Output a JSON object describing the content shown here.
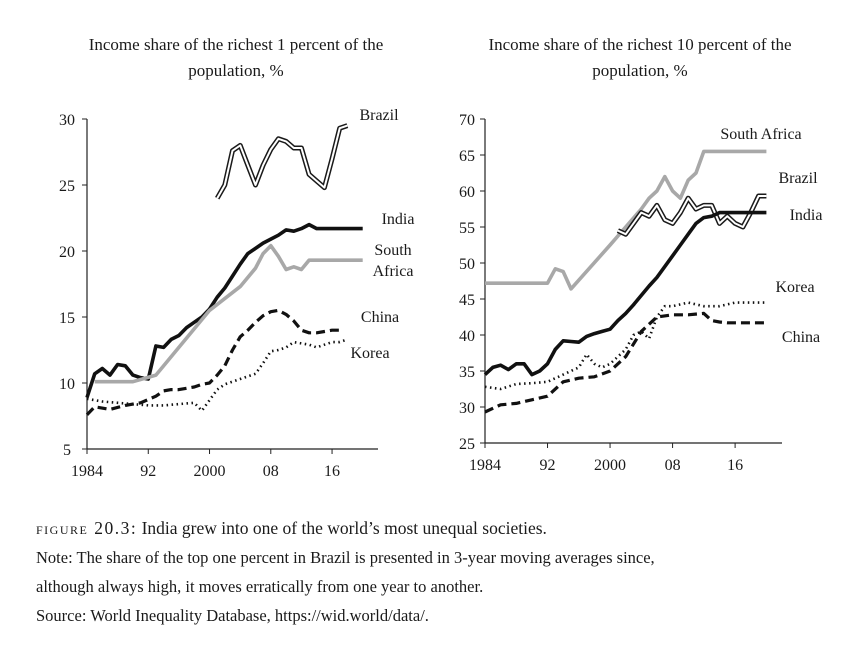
{
  "chart_data": [
    {
      "type": "line",
      "title_lines": [
        "Income share of the richest 1 percent of the",
        "population, %"
      ],
      "ylim": [
        5,
        30
      ],
      "yticks": [
        5,
        10,
        15,
        20,
        25,
        30
      ],
      "xlim": [
        1984,
        2022
      ],
      "xticks": [
        1984,
        1992,
        2000,
        2008,
        2016
      ],
      "xtick_labels": [
        "1984",
        "92",
        "2000",
        "08",
        "16"
      ],
      "series": [
        {
          "name": "Brazil",
          "label_lines": [
            "Brazil"
          ],
          "style": "double",
          "x": [
            2001,
            2002,
            2003,
            2004,
            2005,
            2006,
            2007,
            2008,
            2009,
            2010,
            2011,
            2012,
            2013,
            2014,
            2015,
            2016,
            2017,
            2018
          ],
          "y": [
            24,
            25,
            27.6,
            28,
            26.5,
            25,
            26.5,
            27.7,
            28.5,
            28.3,
            27.8,
            27.8,
            25.8,
            25.3,
            24.8,
            27,
            29.3,
            29.5
          ]
        },
        {
          "name": "India",
          "label_lines": [
            "India"
          ],
          "style": "solid-black",
          "x": [
            1984,
            1985,
            1986,
            1987,
            1988,
            1989,
            1990,
            1991,
            1992,
            1993,
            1994,
            1995,
            1996,
            1997,
            1998,
            1999,
            2000,
            2001,
            2002,
            2003,
            2004,
            2005,
            2006,
            2007,
            2008,
            2009,
            2010,
            2011,
            2012,
            2013,
            2014,
            2015,
            2016,
            2017,
            2018,
            2019,
            2020
          ],
          "y": [
            8.9,
            10.7,
            11.1,
            10.6,
            11.4,
            11.3,
            10.6,
            10.4,
            10.3,
            12.8,
            12.7,
            13.3,
            13.6,
            14.2,
            14.6,
            15,
            15.6,
            16.5,
            17.2,
            18.1,
            19,
            19.8,
            20.2,
            20.6,
            20.9,
            21.2,
            21.6,
            21.5,
            21.7,
            22,
            21.7,
            21.7,
            21.7,
            21.7,
            21.7,
            21.7,
            21.7
          ]
        },
        {
          "name": "South Africa",
          "label_lines": [
            "South",
            "Africa"
          ],
          "style": "solid-gray",
          "x": [
            1985,
            1990,
            1993,
            2000,
            2004,
            2006,
            2007,
            2008,
            2009,
            2010,
            2011,
            2012,
            2013,
            2018,
            2020
          ],
          "y": [
            10.1,
            10.1,
            10.6,
            15.5,
            17.3,
            18.7,
            19.8,
            20.4,
            19.6,
            18.6,
            18.8,
            18.6,
            19.3,
            19.3,
            19.3
          ]
        },
        {
          "name": "China",
          "label_lines": [
            "China"
          ],
          "style": "dashed",
          "x": [
            1984,
            1985,
            1987,
            1989,
            1991,
            1993,
            1994,
            1995,
            1996,
            1997,
            1998,
            1999,
            2000,
            2001,
            2002,
            2003,
            2004,
            2005,
            2006,
            2007,
            2008,
            2009,
            2010,
            2011,
            2012,
            2013,
            2014,
            2015,
            2016,
            2017
          ],
          "y": [
            7.6,
            8.2,
            8,
            8.3,
            8.5,
            9,
            9.4,
            9.5,
            9.5,
            9.6,
            9.7,
            9.9,
            10,
            10.6,
            11.3,
            12.5,
            13.5,
            14,
            14.6,
            15.1,
            15.4,
            15.5,
            15.2,
            14.7,
            14,
            13.8,
            13.8,
            13.9,
            14,
            14
          ]
        },
        {
          "name": "Korea",
          "label_lines": [
            "Korea"
          ],
          "style": "dotted",
          "x": [
            1984,
            1986,
            1988,
            1990,
            1992,
            1994,
            1996,
            1998,
            1999,
            2000,
            2001,
            2002,
            2004,
            2006,
            2007,
            2008,
            2009,
            2010,
            2011,
            2012,
            2013,
            2014,
            2015,
            2016,
            2017,
            2018
          ],
          "y": [
            8.8,
            8.6,
            8.5,
            8.4,
            8.3,
            8.3,
            8.4,
            8.5,
            7.9,
            8.7,
            9.5,
            9.9,
            10.3,
            10.7,
            11.5,
            12.4,
            12.5,
            12.7,
            13.1,
            13,
            12.9,
            12.7,
            12.9,
            13.1,
            13.1,
            13.3
          ]
        }
      ]
    },
    {
      "type": "line",
      "title_lines": [
        "Income share of the richest 10 percent of the",
        "population, %"
      ],
      "ylim": [
        25,
        70
      ],
      "yticks": [
        25,
        30,
        35,
        40,
        45,
        50,
        55,
        60,
        65,
        70
      ],
      "xlim": [
        1984,
        2022
      ],
      "xticks": [
        1984,
        1992,
        2000,
        2008,
        2016
      ],
      "xtick_labels": [
        "1984",
        "92",
        "2000",
        "08",
        "16"
      ],
      "series": [
        {
          "name": "South Africa",
          "label_lines": [
            "South Africa"
          ],
          "style": "solid-gray",
          "x": [
            1984,
            1992,
            1993,
            1994,
            1995,
            2000,
            2002,
            2004,
            2005,
            2006,
            2007,
            2008,
            2009,
            2010,
            2011,
            2012,
            2013,
            2014,
            2018,
            2020
          ],
          "y": [
            47.2,
            47.2,
            49.2,
            48.8,
            46.4,
            52.5,
            55,
            57.5,
            59,
            60,
            62,
            60,
            59,
            61.5,
            62.5,
            65.5,
            65.5,
            65.5,
            65.5,
            65.5
          ]
        },
        {
          "name": "Brazil",
          "label_lines": [
            "Brazil"
          ],
          "style": "double",
          "x": [
            2001,
            2002,
            2003,
            2004,
            2005,
            2006,
            2007,
            2008,
            2009,
            2010,
            2011,
            2012,
            2013,
            2014,
            2015,
            2016,
            2017,
            2018,
            2019,
            2020
          ],
          "y": [
            54.5,
            54,
            55.5,
            57,
            56.5,
            58,
            56,
            55.5,
            57,
            59,
            57.5,
            58,
            58,
            55.5,
            56.5,
            55.5,
            55,
            57,
            59.3,
            59.3
          ]
        },
        {
          "name": "India",
          "label_lines": [
            "India"
          ],
          "style": "solid-black",
          "x": [
            1984,
            1985,
            1986,
            1987,
            1988,
            1989,
            1990,
            1991,
            1992,
            1993,
            1994,
            1995,
            1996,
            1997,
            1998,
            1999,
            2000,
            2001,
            2002,
            2003,
            2004,
            2005,
            2006,
            2007,
            2008,
            2009,
            2010,
            2011,
            2012,
            2013,
            2014,
            2015,
            2016,
            2017,
            2018,
            2019,
            2020
          ],
          "y": [
            34.5,
            35.5,
            35.8,
            35.2,
            36,
            36,
            34.5,
            35,
            36,
            38,
            39.2,
            39.1,
            39,
            39.8,
            40.2,
            40.5,
            40.8,
            42,
            43,
            44.2,
            45.5,
            46.8,
            48,
            49.5,
            51,
            52.5,
            54,
            55.5,
            56.3,
            56.5,
            57,
            57,
            57,
            57,
            57,
            57,
            57
          ]
        },
        {
          "name": "Korea",
          "label_lines": [
            "Korea"
          ],
          "style": "dotted",
          "x": [
            1984,
            1986,
            1988,
            1990,
            1992,
            1994,
            1996,
            1997,
            1998,
            1999,
            2000,
            2001,
            2002,
            2003,
            2004,
            2005,
            2006,
            2007,
            2008,
            2010,
            2012,
            2014,
            2016,
            2018,
            2020
          ],
          "y": [
            32.8,
            32.5,
            33.2,
            33.3,
            33.5,
            34.5,
            35.5,
            37.3,
            36,
            35.5,
            36,
            37,
            38,
            40,
            40.5,
            39.5,
            42.5,
            44,
            44,
            44.5,
            44,
            44,
            44.5,
            44.5,
            44.5
          ]
        },
        {
          "name": "China",
          "label_lines": [
            "China"
          ],
          "style": "dashed",
          "x": [
            1984,
            1986,
            1988,
            1990,
            1992,
            1994,
            1996,
            1998,
            2000,
            2002,
            2004,
            2006,
            2008,
            2010,
            2012,
            2013,
            2014,
            2015,
            2016,
            2018,
            2020
          ],
          "y": [
            29.3,
            30.3,
            30.5,
            31,
            31.5,
            33.5,
            34,
            34.2,
            35,
            37,
            40.5,
            42.5,
            42.8,
            42.8,
            43,
            42,
            41.8,
            41.7,
            41.7,
            41.7,
            41.7
          ]
        }
      ]
    }
  ],
  "caption": {
    "label": "figure 20.3:",
    "title": "India grew into one of the world’s most unequal societies.",
    "note_lines": [
      "Note: The share of the top one percent in Brazil is presented in 3-year moving averages since,",
      "although always high, it moves erratically from one year to another."
    ],
    "source": "Source: World Inequality Database, https://wid.world/data/."
  }
}
